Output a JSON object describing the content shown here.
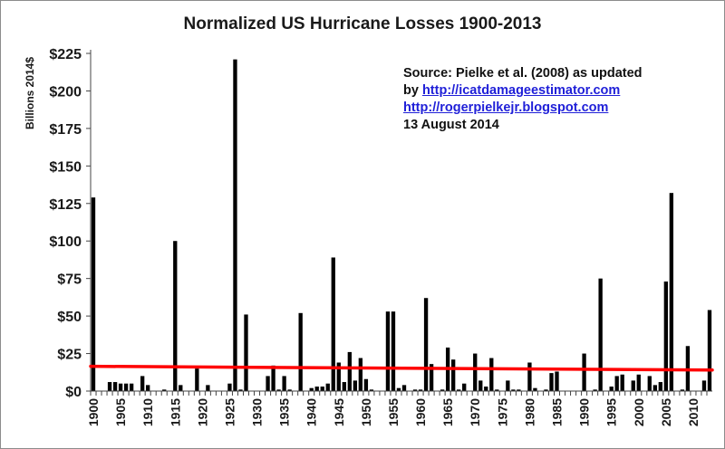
{
  "chart_data": {
    "type": "bar",
    "title": "Normalized US Hurricane Losses 1900-2013",
    "ylabel": "Billions 2014$",
    "xlabel": "",
    "ylim": [
      0,
      225
    ],
    "yticks": [
      0,
      25,
      50,
      75,
      100,
      125,
      150,
      175,
      200,
      225
    ],
    "ytick_labels": [
      "$0",
      "$25",
      "$50",
      "$75",
      "$100",
      "$125",
      "$150",
      "$175",
      "$200",
      "$225"
    ],
    "xlim": [
      1900,
      2013
    ],
    "xtick_labels": [
      "1900",
      "1905",
      "1910",
      "1915",
      "1920",
      "1925",
      "1930",
      "1935",
      "1940",
      "1945",
      "1950",
      "1955",
      "1960",
      "1965",
      "1970",
      "1975",
      "1980",
      "1985",
      "1990",
      "1995",
      "2000",
      "2005",
      "2010"
    ],
    "categories": [
      1900,
      1901,
      1902,
      1903,
      1904,
      1905,
      1906,
      1907,
      1908,
      1909,
      1910,
      1911,
      1912,
      1913,
      1914,
      1915,
      1916,
      1917,
      1918,
      1919,
      1920,
      1921,
      1922,
      1923,
      1924,
      1925,
      1926,
      1927,
      1928,
      1929,
      1930,
      1931,
      1932,
      1933,
      1934,
      1935,
      1936,
      1937,
      1938,
      1939,
      1940,
      1941,
      1942,
      1943,
      1944,
      1945,
      1946,
      1947,
      1948,
      1949,
      1950,
      1951,
      1952,
      1953,
      1954,
      1955,
      1956,
      1957,
      1958,
      1959,
      1960,
      1961,
      1962,
      1963,
      1964,
      1965,
      1966,
      1967,
      1968,
      1969,
      1970,
      1971,
      1972,
      1973,
      1974,
      1975,
      1976,
      1977,
      1978,
      1979,
      1980,
      1981,
      1982,
      1983,
      1984,
      1985,
      1986,
      1987,
      1988,
      1989,
      1990,
      1991,
      1992,
      1993,
      1994,
      1995,
      1996,
      1997,
      1998,
      1999,
      2000,
      2001,
      2002,
      2003,
      2004,
      2005,
      2006,
      2007,
      2008,
      2009,
      2010,
      2011,
      2012,
      2013
    ],
    "values": [
      129,
      0,
      0,
      6,
      6,
      5,
      5,
      5,
      0,
      10,
      4,
      0,
      0,
      1,
      0,
      100,
      4,
      0,
      0,
      15,
      0,
      4,
      0,
      0,
      0,
      5,
      221,
      1,
      51,
      0,
      0,
      0,
      10,
      17,
      1,
      10,
      1,
      0,
      52,
      0,
      2,
      3,
      3,
      5,
      89,
      19,
      6,
      26,
      7,
      22,
      8,
      1,
      0,
      0,
      53,
      53,
      2,
      4,
      0,
      1,
      1,
      62,
      18,
      0,
      1,
      29,
      21,
      1,
      5,
      0,
      25,
      7,
      3,
      22,
      1,
      0,
      7,
      1,
      1,
      0,
      19,
      2,
      0,
      1,
      12,
      13,
      0,
      0,
      0,
      0,
      25,
      0,
      1,
      75,
      0,
      3,
      10,
      11,
      0,
      7,
      11,
      0,
      10,
      4,
      6,
      73,
      132,
      0,
      1,
      30,
      0,
      0,
      7,
      54
    ],
    "series_color": "#000000",
    "trend_line": {
      "name": "trend",
      "start_year": 1900,
      "start_value": 16.5,
      "end_year": 2013,
      "end_value": 14,
      "color": "#ff0000"
    },
    "grid": false,
    "legend": "none"
  },
  "annotation": {
    "line1": "Source: Pielke et al. (2008) as updated",
    "line2_prefix": "by",
    "link1": "http://icatdamageestimator.com",
    "link2": "http://rogerpielkejr.blogspot.com",
    "date": "13 August 2014"
  },
  "colors": {
    "bars": "#000000",
    "trend": "#ff0000",
    "link": "#1f1fd8",
    "axis": "#444444"
  }
}
